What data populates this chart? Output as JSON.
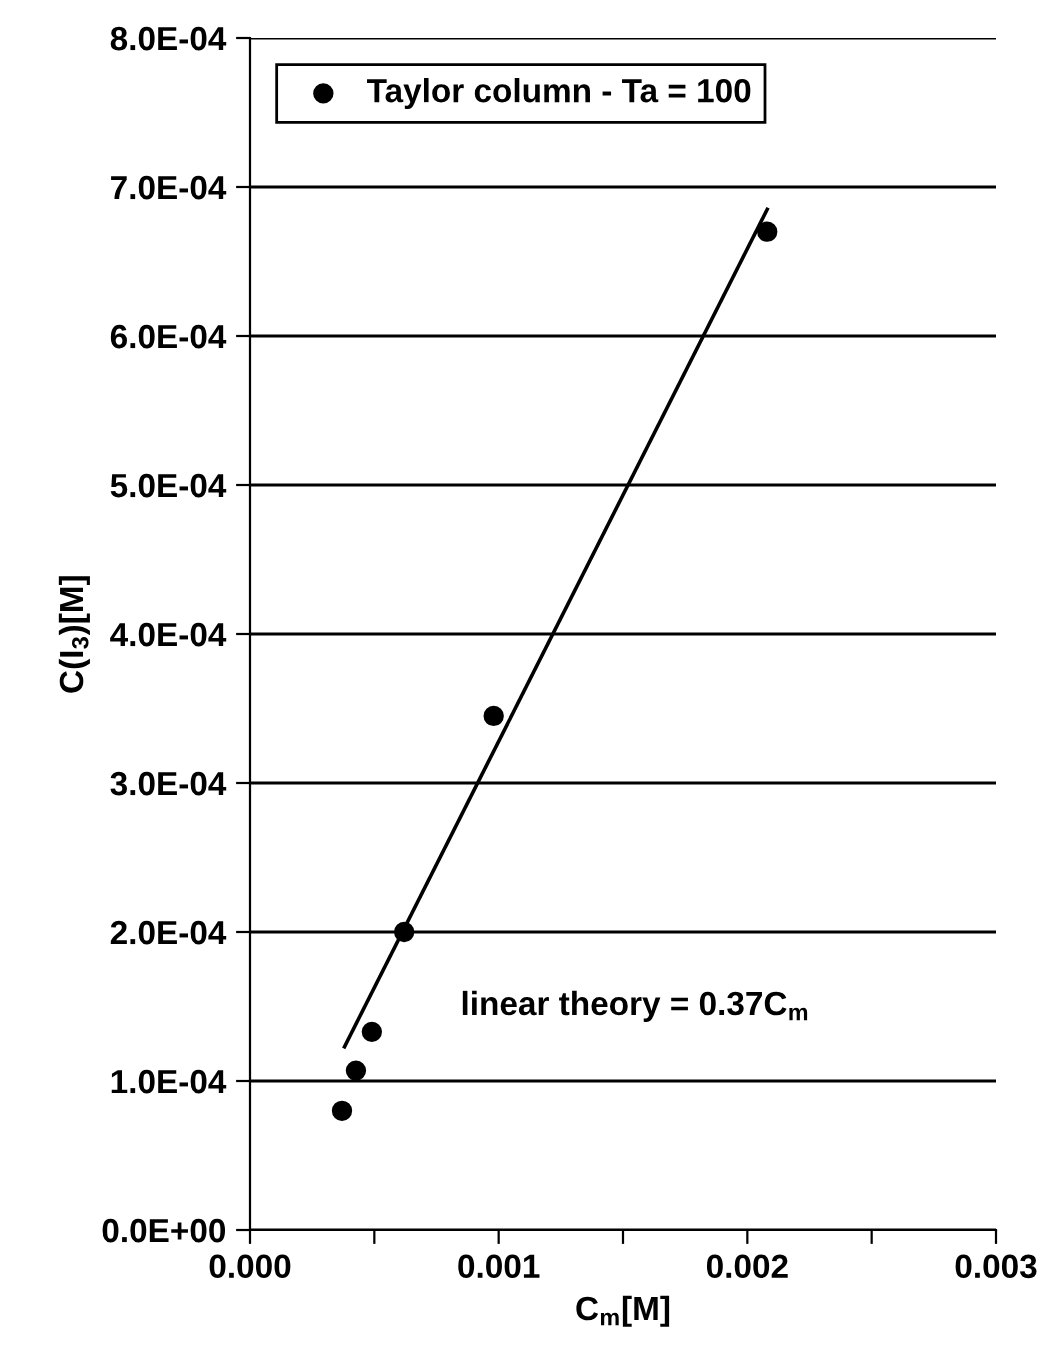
{
  "chart_data": {
    "type": "scatter",
    "xlabel": "C$_{m}$[M]",
    "ylabel": "C(I$_{3}$)[M]",
    "series": [
      {
        "name": "Taylor column - Ta = 100",
        "color": "#000000",
        "marker": "circle",
        "x": [
          0.00037,
          0.000426,
          0.00049,
          0.00062,
          0.00098,
          0.00208
        ],
        "values": [
          8e-05,
          0.000107,
          0.000133,
          0.0002,
          0.000345,
          0.00067
        ]
      },
      {
        "type": "line",
        "color": "#000000",
        "line_style": "solid",
        "x": [
          0.00038,
          0.00208
        ],
        "values": [
          0.000123,
          0.000685
        ]
      }
    ],
    "annotations": [
      "linear theory = 0.37C$_{m}$"
    ],
    "xlim": [
      0,
      0.003
    ],
    "xticks": [
      {
        "value": 0,
        "label": "0.000"
      },
      {
        "value": 0.0005,
        "label": null
      },
      {
        "value": 0.001,
        "label": "0.001"
      },
      {
        "value": 0.0015,
        "label": null
      },
      {
        "value": 0.002,
        "label": "0.002"
      },
      {
        "value": 0.0025,
        "label": null
      },
      {
        "value": 0.003,
        "label": "0.003"
      }
    ],
    "ylim": [
      0,
      0.0008
    ],
    "yticks": [
      {
        "value": 0,
        "label": "0.0E+00"
      },
      {
        "value": 0.0001,
        "label": "1.0E-04"
      },
      {
        "value": 0.0002,
        "label": "2.0E-04"
      },
      {
        "value": 0.0003,
        "label": "3.0E-04"
      },
      {
        "value": 0.0004,
        "label": "4.0E-04"
      },
      {
        "value": 0.0005,
        "label": "5.0E-04"
      },
      {
        "value": 0.0006,
        "label": "6.0E-04"
      },
      {
        "value": 0.0007,
        "label": "7.0E-04"
      },
      {
        "value": 0.0008,
        "label": "8.0E-04"
      }
    ],
    "grid": "y",
    "legend": "top left"
  }
}
